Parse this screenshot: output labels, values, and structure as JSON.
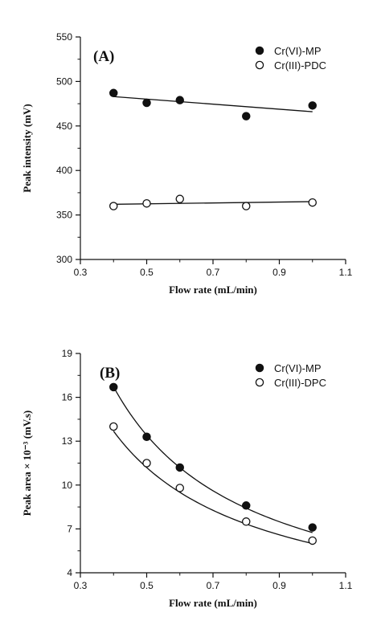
{
  "chart_data": [
    {
      "type": "scatter",
      "panel_label": "(A)",
      "xlabel": "Flow rate (mL/min)",
      "ylabel": "Peak intensity (mV)",
      "xlim": [
        0.3,
        1.1
      ],
      "ylim": [
        300,
        550
      ],
      "xticks": [
        "0.3",
        "0.5",
        "0.7",
        "0.9",
        "1.1"
      ],
      "yticks": [
        "300",
        "350",
        "400",
        "450",
        "500",
        "550"
      ],
      "legend_position": "top-right",
      "series": [
        {
          "name": "Cr(VI)-MP",
          "marker": "filled-circle",
          "x": [
            0.4,
            0.5,
            0.6,
            0.8,
            1.0
          ],
          "y": [
            487,
            476,
            479,
            461,
            473
          ],
          "fit": "linear",
          "fit_line": [
            [
              0.4,
              483
            ],
            [
              1.0,
              466
            ]
          ]
        },
        {
          "name": "Cr(III)-PDC",
          "marker": "open-circle",
          "x": [
            0.4,
            0.5,
            0.6,
            0.8,
            1.0
          ],
          "y": [
            360,
            363,
            368,
            360,
            364
          ],
          "fit": "linear",
          "fit_line": [
            [
              0.4,
              362
            ],
            [
              1.0,
              365
            ]
          ]
        }
      ]
    },
    {
      "type": "scatter",
      "panel_label": "(B)",
      "xlabel": "Flow rate (mL/min)",
      "ylabel": "Peak area × 10⁻³ (mV.s)",
      "xlim": [
        0.3,
        1.1
      ],
      "ylim": [
        4,
        19
      ],
      "xticks": [
        "0.3",
        "0.5",
        "0.7",
        "0.9",
        "1.1"
      ],
      "yticks": [
        "4",
        "7",
        "10",
        "13",
        "16",
        "19"
      ],
      "legend_position": "top-right",
      "series": [
        {
          "name": "Cr(VI)-MP",
          "marker": "filled-circle",
          "x": [
            0.4,
            0.5,
            0.6,
            0.8,
            1.0
          ],
          "y": [
            16.7,
            13.3,
            11.2,
            8.6,
            7.1
          ],
          "fit": "power",
          "fit_coef": 6.75,
          "fit_exp": -0.99
        },
        {
          "name": "Cr(III)-DPC",
          "marker": "open-circle",
          "x": [
            0.4,
            0.5,
            0.6,
            0.8,
            1.0
          ],
          "y": [
            14.0,
            11.5,
            9.8,
            7.5,
            6.2
          ],
          "fit": "power",
          "fit_coef": 6.0,
          "fit_exp": -0.9
        }
      ]
    }
  ]
}
